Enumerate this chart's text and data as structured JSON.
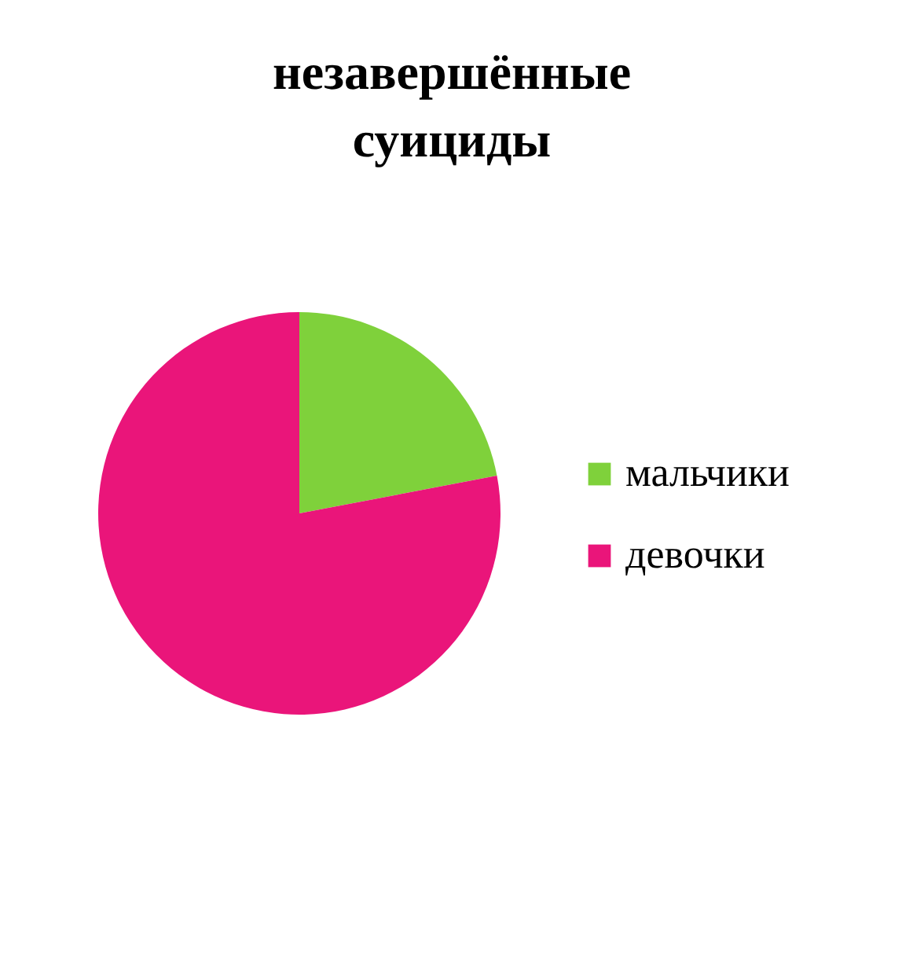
{
  "chart_data": {
    "type": "pie",
    "title": "незавершённые суициды",
    "categories": [
      "мальчики",
      "девочки"
    ],
    "values": [
      22,
      78
    ],
    "colors": [
      "#7fd13b",
      "#ea157a"
    ],
    "legend": "right"
  }
}
